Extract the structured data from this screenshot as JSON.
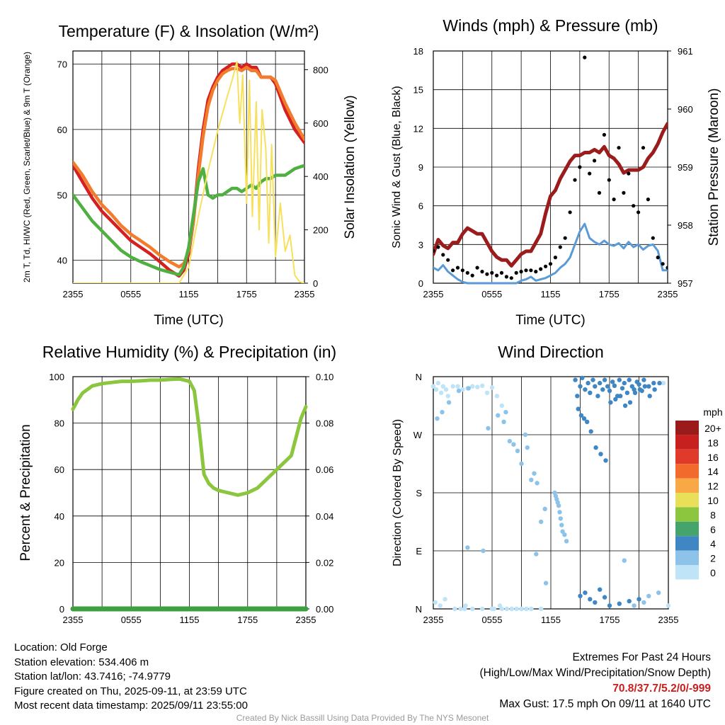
{
  "chart_data": [
    {
      "type": "line",
      "title": "Temperature (F) & Insolation (W/m²)",
      "xlabel": "Time (UTC)",
      "ylabel": "2m T, Td, HI/WC (Red, Green, Scarlet/Blue) & 9m T (Orange)",
      "ylabel_right": "Solar Insolation (Yellow)",
      "x_ticks": [
        "2355",
        "0555",
        "1155",
        "1755",
        "2355"
      ],
      "y_ticks": [
        40,
        50,
        60,
        70
      ],
      "y_ticks_right": [
        0,
        200,
        400,
        600,
        800
      ],
      "ylim": [
        36.5,
        72
      ],
      "ylim_right": [
        0,
        870
      ],
      "grid": true,
      "x_hours": [
        0,
        1,
        2,
        3,
        4,
        5,
        6,
        7,
        8,
        9,
        10,
        11,
        11.5,
        12,
        12.5,
        13,
        13.5,
        14,
        14.5,
        15,
        15.5,
        16,
        16.5,
        17,
        17.5,
        18,
        18.5,
        19,
        19.5,
        20,
        20.5,
        21,
        22,
        23,
        24
      ],
      "series": [
        {
          "name": "2m T",
          "color": "#d42020",
          "values": [
            54.5,
            52.0,
            49.5,
            47.5,
            46.0,
            44.5,
            43.0,
            42.0,
            41.0,
            39.8,
            38.5,
            37.6,
            38.5,
            41,
            46,
            54,
            60,
            64.5,
            66.5,
            68,
            69,
            69.5,
            70,
            70,
            69.5,
            70,
            69.5,
            69.5,
            68,
            68,
            68,
            67,
            63,
            60,
            58
          ]
        },
        {
          "name": "9m T",
          "color": "#f37c2c",
          "values": [
            55.0,
            53.0,
            50.5,
            48.5,
            47.0,
            45.3,
            44.0,
            43.0,
            42.0,
            40.8,
            39.8,
            39.0,
            39.5,
            41.5,
            46,
            53,
            59,
            63.5,
            66,
            67.5,
            68.5,
            69,
            69.3,
            69.3,
            69,
            69.5,
            69,
            69,
            68,
            68,
            68,
            67.5,
            64,
            61,
            58.5
          ]
        },
        {
          "name": "Td",
          "color": "#4fb041",
          "values": [
            50.0,
            48.0,
            46.0,
            44.5,
            43.0,
            41.5,
            40.5,
            39.8,
            39.2,
            38.6,
            38.2,
            37.8,
            39,
            42,
            47,
            52,
            54,
            50,
            49.5,
            50,
            50,
            50.5,
            51,
            51,
            50.5,
            51,
            51.5,
            51,
            52,
            52.5,
            52.5,
            53,
            53,
            54,
            54.5
          ]
        },
        {
          "name": "Solar Insolation",
          "color": "#f7e15c",
          "axis": "right",
          "x_hours": [
            0,
            11,
            12,
            13,
            14,
            15,
            16,
            16.5,
            17,
            17.3,
            17.6,
            18,
            18.3,
            18.6,
            19,
            19.3,
            19.6,
            20,
            20.3,
            20.6,
            21,
            21.5,
            22,
            22.5,
            23,
            23.5,
            24
          ],
          "values": [
            0,
            0,
            60,
            250,
            420,
            570,
            700,
            760,
            830,
            600,
            780,
            300,
            760,
            250,
            680,
            200,
            650,
            500,
            150,
            520,
            100,
            300,
            120,
            180,
            30,
            5,
            0
          ]
        }
      ]
    },
    {
      "type": "line",
      "title": "Winds (mph) & Pressure (mb)",
      "xlabel": "Time (UTC)",
      "ylabel": "Sonic Wind & Gust (Blue, Black)",
      "ylabel_right": "Station Pressure (Maroon)",
      "x_ticks": [
        "2355",
        "0555",
        "1155",
        "1755",
        "2355"
      ],
      "y_ticks": [
        0,
        3,
        6,
        9,
        12,
        15,
        18
      ],
      "y_ticks_right": [
        957,
        958,
        959,
        960,
        961
      ],
      "ylim": [
        0,
        18
      ],
      "ylim_right": [
        957,
        961
      ],
      "grid": true,
      "x_hours": [
        0,
        0.5,
        1,
        1.5,
        2,
        2.5,
        3,
        3.5,
        4,
        4.5,
        5,
        5.5,
        6,
        6.5,
        7,
        7.5,
        8,
        8.5,
        9,
        9.5,
        10,
        10.5,
        11,
        11.5,
        12,
        12.5,
        13,
        13.5,
        14,
        14.5,
        15,
        15.5,
        16,
        16.5,
        17,
        17.5,
        18,
        18.5,
        19,
        19.5,
        20,
        20.5,
        21,
        21.5,
        22,
        22.5,
        23,
        23.5,
        24
      ],
      "series": [
        {
          "name": "Sonic Wind",
          "color": "#5b9bd5",
          "values": [
            1.2,
            1.0,
            1.4,
            0.9,
            0.6,
            0.3,
            0.1,
            0.0,
            0.0,
            0.0,
            0.0,
            0.0,
            0.0,
            0.0,
            0.0,
            0.0,
            0.0,
            0.0,
            0.2,
            0.3,
            0.5,
            0.2,
            0.3,
            0.4,
            0.6,
            0.8,
            1.2,
            1.5,
            2.0,
            3.0,
            4.0,
            4.6,
            3.5,
            3.2,
            3.0,
            3.3,
            3.0,
            2.9,
            3.1,
            2.7,
            3.2,
            2.8,
            3.0,
            2.6,
            2.9,
            3.0,
            2.5,
            1.0,
            1.0
          ]
        },
        {
          "name": "Gust",
          "color": "#000000",
          "values": [
            2.5,
            2.8,
            2.2,
            1.8,
            1.0,
            1.2,
            1.0,
            0.8,
            0.6,
            1.2,
            0.9,
            0.7,
            0.8,
            0.6,
            0.8,
            0.5,
            0.4,
            0.8,
            0.9,
            1.0,
            1.0,
            0.9,
            1.1,
            1.3,
            1.5,
            2.0,
            2.8,
            3.5,
            5.5,
            8.0,
            9.0,
            17.5,
            8.5,
            9.5,
            7.0,
            11.5,
            8.0,
            6.5,
            10.5,
            7.0,
            8.5,
            6.0,
            5.5,
            10.5,
            6.5,
            3.5,
            2.0,
            1.5,
            1.2
          ]
        },
        {
          "name": "Station Pressure",
          "color": "#9b1c1c",
          "axis": "right",
          "values": [
            957.5,
            957.75,
            957.65,
            957.6,
            957.7,
            957.7,
            957.85,
            957.95,
            957.9,
            957.85,
            957.85,
            957.7,
            957.55,
            957.45,
            957.4,
            957.4,
            957.3,
            957.4,
            957.5,
            957.55,
            957.55,
            957.7,
            957.85,
            958.2,
            958.5,
            958.6,
            958.8,
            958.95,
            959.1,
            959.2,
            959.2,
            959.25,
            959.25,
            959.3,
            959.25,
            959.35,
            959.2,
            959.15,
            959.05,
            958.9,
            958.95,
            958.95,
            958.95,
            959.0,
            959.15,
            959.25,
            959.4,
            959.6,
            959.75
          ]
        }
      ]
    },
    {
      "type": "line",
      "title": "Relative Humidity (%) & Precipitation (in)",
      "xlabel": "",
      "ylabel": "Percent & Precipitation",
      "x_ticks": [
        "2355",
        "0555",
        "1155",
        "1755",
        "2355"
      ],
      "y_ticks": [
        0,
        20,
        40,
        60,
        80,
        100
      ],
      "y_ticks_right": [
        "0.00",
        "0.02",
        "0.04",
        "0.06",
        "0.08",
        "0.10"
      ],
      "ylim": [
        0,
        100
      ],
      "ylim_right": [
        0,
        0.1
      ],
      "grid": true,
      "x_hours": [
        0,
        0.5,
        1,
        2,
        3,
        4,
        5,
        6,
        7,
        8,
        9,
        10,
        11,
        12,
        12.5,
        13,
        13.5,
        14,
        14.5,
        15,
        16,
        17,
        18,
        19,
        19.5,
        20,
        21,
        22,
        22.5,
        23,
        23.5,
        24
      ],
      "series": [
        {
          "name": "Relative Humidity",
          "color": "#8cc63f",
          "values": [
            86,
            90,
            93,
            96,
            97,
            97.5,
            98,
            98,
            98.2,
            98.5,
            98.5,
            98.8,
            99,
            98,
            94,
            78,
            58,
            54,
            52,
            51,
            50,
            49,
            50,
            52,
            54,
            56,
            60,
            64,
            66,
            74,
            82,
            87
          ]
        },
        {
          "name": "Precipitation",
          "color": "#3ca040",
          "axis": "right",
          "values": [
            0,
            0,
            0,
            0,
            0,
            0,
            0,
            0,
            0,
            0,
            0,
            0,
            0,
            0,
            0,
            0,
            0,
            0,
            0,
            0,
            0,
            0,
            0,
            0,
            0,
            0,
            0,
            0,
            0,
            0,
            0,
            0
          ]
        }
      ]
    },
    {
      "type": "scatter",
      "title": "Wind Direction",
      "ylabel": "Direction (Colored By Speed)",
      "x_ticks": [
        "2355",
        "0555",
        "1155",
        "1755",
        "2355"
      ],
      "y_ticks": [
        "N",
        "E",
        "S",
        "W",
        "N"
      ],
      "ylim": [
        0,
        360
      ],
      "grid": true,
      "legend_title": "mph",
      "legend_labels": [
        "20+",
        "18",
        "16",
        "14",
        "12",
        "10",
        "8",
        "6",
        "4",
        "2",
        "0"
      ],
      "legend_colors": [
        "#9b1b1b",
        "#c8201e",
        "#e03a2b",
        "#f26a2c",
        "#f8a845",
        "#e9e05a",
        "#8cc63f",
        "#45a46b",
        "#3f87c4",
        "#8dc3e8",
        "#bfe3f7"
      ],
      "points_by_speed": [
        {
          "speed_bin": "0",
          "color": "#bfe3f7",
          "x_hours": [
            0,
            0.3,
            0.5,
            0.8,
            1,
            1.3,
            1.5,
            2,
            2.5,
            3,
            3.5,
            4,
            4.5,
            5,
            5.5,
            6,
            6.5,
            7,
            0.2,
            0.7,
            1.2,
            2.2,
            3.3,
            6.2,
            6.8,
            7.5,
            8,
            8.5,
            9,
            9.5,
            10,
            2.8,
            3.2,
            4,
            5,
            6,
            7,
            8,
            9,
            10,
            11,
            23.5,
            24
          ],
          "dirs": [
            345,
            340,
            350,
            335,
            345,
            340,
            330,
            345,
            345,
            340,
            342,
            345,
            344,
            346,
            335,
            343,
            330,
            315,
            10,
            5,
            15,
            0,
            5,
            0,
            5,
            0,
            0,
            0,
            0,
            0,
            0,
            0,
            0,
            0,
            0,
            0,
            0,
            0,
            0,
            0,
            0,
            350,
            5
          ]
        },
        {
          "speed_bin": "2",
          "color": "#8dc3e8",
          "x_hours": [
            0.4,
            0.9,
            1.6,
            2.6,
            3.6,
            5.6,
            6.6,
            7.2,
            7.4,
            7.8,
            8.2,
            8.6,
            9,
            9.4,
            9.6,
            10,
            10.3,
            10.6,
            11,
            11.4,
            12.4,
            12.5,
            12.6,
            12.7,
            12.8,
            12.9,
            13,
            13.1,
            13.2,
            13.4,
            13.6,
            3.5,
            5.1,
            10.5,
            11.5,
            19.5,
            20.5,
            21.5,
            22,
            23
          ],
          "dirs": [
            295,
            305,
            320,
            338,
            342,
            280,
            300,
            290,
            305,
            260,
            255,
            245,
            225,
            270,
            250,
            200,
            210,
            195,
            135,
            155,
            180,
            175,
            170,
            165,
            160,
            150,
            140,
            130,
            120,
            115,
            105,
            95,
            90,
            85,
            40,
            75,
            5,
            10,
            20,
            25
          ]
        },
        {
          "speed_bin": "4",
          "color": "#3f87c4",
          "x_hours": [
            14.5,
            14.7,
            15,
            15.2,
            15.5,
            15.8,
            16,
            16.3,
            16.5,
            16.8,
            17,
            17.3,
            17.5,
            17.8,
            18,
            18.3,
            18.5,
            18.8,
            19,
            19.3,
            19.5,
            19.8,
            20,
            20.3,
            20.5,
            20.8,
            21,
            21.3,
            21.5,
            22,
            22.5,
            14.8,
            15.1,
            15.4,
            15.7,
            16.1,
            16.6,
            17.1,
            17.6,
            18.1,
            18.6,
            19.1,
            19.6,
            20.1,
            20.6,
            21.1,
            21.6,
            22.1,
            22.6,
            23.1,
            15,
            15.5,
            16,
            16.5,
            17,
            17.5,
            18,
            19,
            20,
            21
          ],
          "dirs": [
            355,
            330,
            345,
            358,
            340,
            350,
            335,
            355,
            345,
            330,
            350,
            340,
            355,
            345,
            338,
            352,
            346,
            330,
            355,
            342,
            350,
            335,
            355,
            345,
            340,
            352,
            348,
            338,
            355,
            345,
            350,
            310,
            300,
            295,
            290,
            275,
            250,
            240,
            230,
            320,
            325,
            330,
            315,
            320,
            335,
            340,
            345,
            330,
            340,
            350,
            20,
            25,
            15,
            10,
            30,
            18,
            5,
            8,
            12,
            15
          ]
        }
      ]
    }
  ],
  "footer": {
    "location": "Location: Old Forge",
    "elevation": "Station elevation: 534.406 m",
    "latlon": "Station lat/lon: 43.7416; -74.9779",
    "created": "Figure created on Thu, 2025-09-11, at 23:59 UTC",
    "recent": "Most recent data timestamp: 2025/09/11 23:55:00",
    "extremes_title": "Extremes For Past 24 Hours",
    "extremes_legend": "(High/Low/Max Wind/Precipitation/Snow Depth)",
    "extremes_values": "70.8/37.7/5.2/0/-999",
    "max_gust": "Max Gust: 17.5 mph On 09/11 at 1640 UTC",
    "credit": "Created By Nick Bassill Using Data Provided By The NYS Mesonet"
  }
}
